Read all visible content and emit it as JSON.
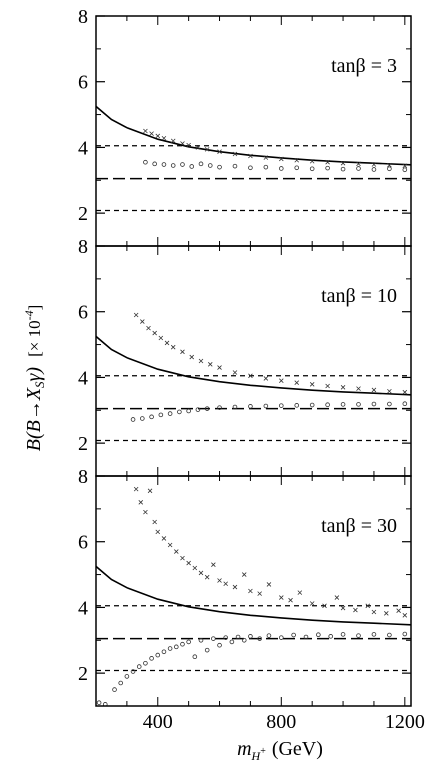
{
  "figure": {
    "ylabel_main": "B(B",
    "ylabel_arrow": "→",
    "ylabel_xs": "X",
    "ylabel_s": "S",
    "ylabel_gamma": "γ)",
    "ylabel_units": "[× 10",
    "ylabel_units_exp": "-4",
    "ylabel_units_close": "]",
    "xlabel_m": "m",
    "xlabel_sub": "H",
    "xlabel_plus": "+",
    "xlabel_units": "(GeV)"
  },
  "chart_data": [
    {
      "type": "scatter",
      "panel_label": "tanβ = 3",
      "xlim": [
        200,
        1220
      ],
      "ylim": [
        1,
        8
      ],
      "xticks": [
        400,
        800,
        1200
      ],
      "yticks": [
        2,
        4,
        6,
        8
      ],
      "ytick_labels": [
        "2",
        "4",
        "6",
        "8"
      ],
      "reference_lines": {
        "upper_short_dash": 4.05,
        "central_long_dash": 3.05,
        "lower_short_dash": 2.08
      },
      "sm_curve": {
        "x": [
          200,
          250,
          300,
          400,
          500,
          600,
          700,
          800,
          900,
          1000,
          1100,
          1220
        ],
        "y": [
          5.25,
          4.85,
          4.6,
          4.25,
          4.02,
          3.87,
          3.76,
          3.68,
          3.61,
          3.56,
          3.52,
          3.47
        ]
      },
      "series": [
        {
          "marker": "x",
          "x": [
            360,
            380,
            400,
            420,
            450,
            480,
            500,
            530,
            560,
            600,
            650,
            700,
            750,
            800,
            850,
            900,
            950,
            1000,
            1050,
            1100,
            1150,
            1200
          ],
          "y": [
            4.5,
            4.42,
            4.35,
            4.28,
            4.2,
            4.12,
            4.07,
            4.0,
            3.94,
            3.87,
            3.8,
            3.74,
            3.69,
            3.65,
            3.61,
            3.58,
            3.55,
            3.52,
            3.5,
            3.48,
            3.46,
            3.44
          ]
        },
        {
          "marker": "o",
          "x": [
            360,
            390,
            420,
            450,
            480,
            510,
            540,
            570,
            600,
            650,
            700,
            750,
            800,
            850,
            900,
            950,
            1000,
            1050,
            1100,
            1150,
            1200
          ],
          "y": [
            3.55,
            3.5,
            3.48,
            3.45,
            3.48,
            3.42,
            3.5,
            3.45,
            3.4,
            3.43,
            3.38,
            3.4,
            3.36,
            3.38,
            3.35,
            3.37,
            3.34,
            3.36,
            3.33,
            3.35,
            3.32
          ]
        }
      ]
    },
    {
      "type": "scatter",
      "panel_label": "tanβ = 10",
      "xlim": [
        200,
        1220
      ],
      "ylim": [
        1,
        8
      ],
      "xticks": [
        400,
        800,
        1200
      ],
      "yticks": [
        2,
        4,
        6,
        8
      ],
      "ytick_labels": [
        "2",
        "4",
        "6",
        "8"
      ],
      "reference_lines": {
        "upper_short_dash": 4.05,
        "central_long_dash": 3.05,
        "lower_short_dash": 2.08
      },
      "sm_curve": {
        "x": [
          200,
          250,
          300,
          400,
          500,
          600,
          700,
          800,
          900,
          1000,
          1100,
          1220
        ],
        "y": [
          5.25,
          4.85,
          4.6,
          4.25,
          4.02,
          3.87,
          3.76,
          3.68,
          3.61,
          3.56,
          3.52,
          3.47
        ]
      },
      "series": [
        {
          "marker": "x",
          "x": [
            330,
            350,
            370,
            390,
            410,
            430,
            450,
            480,
            510,
            540,
            570,
            600,
            650,
            700,
            750,
            800,
            850,
            900,
            950,
            1000,
            1050,
            1100,
            1150,
            1200
          ],
          "y": [
            5.9,
            5.7,
            5.5,
            5.35,
            5.2,
            5.05,
            4.92,
            4.78,
            4.62,
            4.5,
            4.4,
            4.3,
            4.15,
            4.05,
            3.97,
            3.9,
            3.84,
            3.79,
            3.74,
            3.7,
            3.66,
            3.62,
            3.58,
            3.55
          ]
        },
        {
          "marker": "o",
          "x": [
            320,
            350,
            380,
            410,
            440,
            470,
            500,
            530,
            560,
            600,
            650,
            700,
            750,
            800,
            850,
            900,
            950,
            1000,
            1050,
            1100,
            1150,
            1200
          ],
          "y": [
            2.72,
            2.75,
            2.8,
            2.86,
            2.9,
            2.95,
            2.98,
            3.02,
            3.05,
            3.08,
            3.1,
            3.12,
            3.13,
            3.14,
            3.15,
            3.16,
            3.17,
            3.18,
            3.18,
            3.19,
            3.19,
            3.2
          ]
        }
      ]
    },
    {
      "type": "scatter",
      "panel_label": "tanβ = 30",
      "xlim": [
        200,
        1220
      ],
      "ylim": [
        1,
        8
      ],
      "xticks": [
        400,
        800,
        1200
      ],
      "yticks": [
        2,
        4,
        6,
        8
      ],
      "ytick_labels": [
        "2",
        "4",
        "6",
        "8"
      ],
      "reference_lines": {
        "upper_short_dash": 4.05,
        "central_long_dash": 3.05,
        "lower_short_dash": 2.08
      },
      "sm_curve": {
        "x": [
          200,
          250,
          300,
          400,
          500,
          600,
          700,
          800,
          900,
          1000,
          1100,
          1220
        ],
        "y": [
          5.25,
          4.85,
          4.6,
          4.25,
          4.02,
          3.87,
          3.76,
          3.68,
          3.61,
          3.56,
          3.52,
          3.47
        ]
      },
      "series": [
        {
          "marker": "x",
          "x": [
            330,
            345,
            360,
            375,
            390,
            400,
            420,
            440,
            460,
            480,
            500,
            520,
            540,
            560,
            580,
            600,
            620,
            650,
            680,
            700,
            730,
            760,
            800,
            830,
            860,
            900,
            940,
            980,
            1000,
            1040,
            1080,
            1100,
            1140,
            1180,
            1200
          ],
          "y": [
            7.6,
            7.2,
            6.9,
            7.55,
            6.6,
            6.3,
            6.1,
            5.9,
            5.7,
            5.5,
            5.35,
            5.2,
            5.05,
            4.92,
            5.3,
            4.82,
            4.72,
            4.62,
            5.0,
            4.5,
            4.42,
            4.7,
            4.3,
            4.22,
            4.45,
            4.12,
            4.05,
            4.3,
            3.98,
            3.92,
            4.05,
            3.86,
            3.82,
            3.9,
            3.76
          ]
        },
        {
          "marker": "o",
          "x": [
            210,
            230,
            260,
            280,
            300,
            320,
            340,
            360,
            380,
            400,
            420,
            440,
            460,
            480,
            500,
            520,
            540,
            560,
            580,
            600,
            620,
            640,
            660,
            680,
            700,
            730,
            760,
            800,
            840,
            880,
            920,
            960,
            1000,
            1050,
            1100,
            1150,
            1200
          ],
          "y": [
            1.1,
            1.05,
            1.5,
            1.7,
            1.9,
            2.05,
            2.2,
            2.3,
            2.45,
            2.55,
            2.65,
            2.75,
            2.8,
            2.88,
            2.95,
            2.5,
            3.0,
            2.7,
            3.05,
            2.85,
            3.08,
            2.95,
            3.1,
            3.0,
            3.12,
            3.05,
            3.14,
            3.08,
            3.16,
            3.1,
            3.17,
            3.12,
            3.18,
            3.14,
            3.18,
            3.16,
            3.19
          ]
        }
      ]
    }
  ]
}
